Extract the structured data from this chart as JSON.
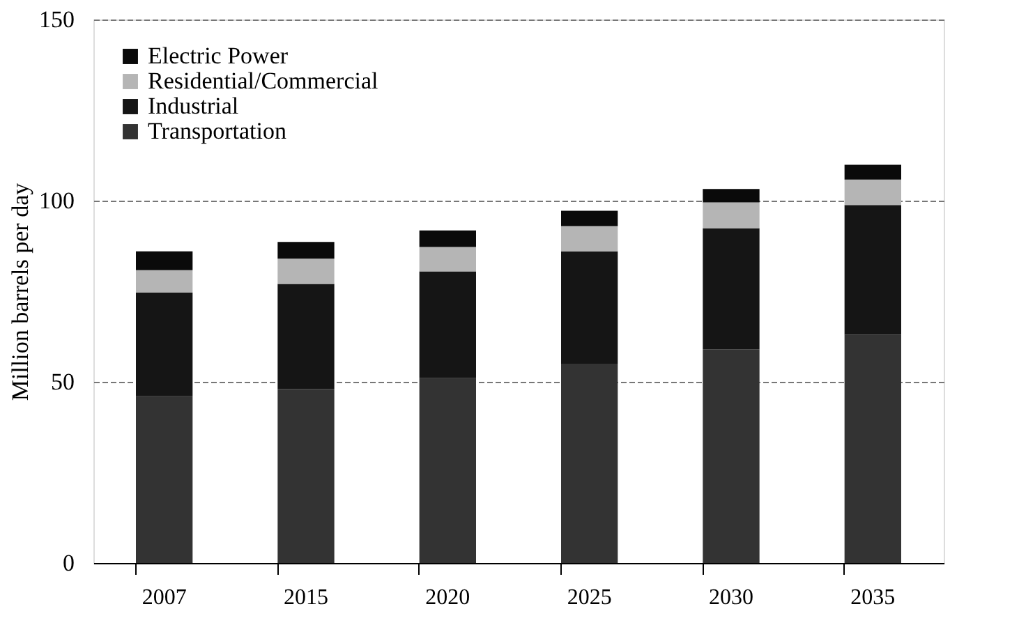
{
  "chart_data": {
    "type": "bar",
    "stacked": true,
    "ylabel": "Million barrels per day",
    "categories": [
      "2007",
      "2015",
      "2020",
      "2025",
      "2030",
      "2035"
    ],
    "series": [
      {
        "name": "Transportation",
        "color": "#333333",
        "values": [
          46,
          48,
          51,
          55,
          59,
          63
        ]
      },
      {
        "name": "Industrial",
        "color": "#151515",
        "values": [
          28.6,
          29,
          29.5,
          31,
          33.4,
          35.8
        ]
      },
      {
        "name": "Residential/Commercial",
        "color": "#b5b5b5",
        "values": [
          6.2,
          7,
          6.7,
          7,
          7.1,
          7
        ]
      },
      {
        "name": "Electric Power",
        "color": "#0a0a0a",
        "values": [
          5.2,
          4.6,
          4.6,
          4.2,
          3.7,
          4.1
        ]
      }
    ],
    "ylim": [
      0,
      150
    ],
    "yticks": [
      0,
      50,
      100,
      150
    ],
    "grid": "y",
    "legend": "top left"
  }
}
